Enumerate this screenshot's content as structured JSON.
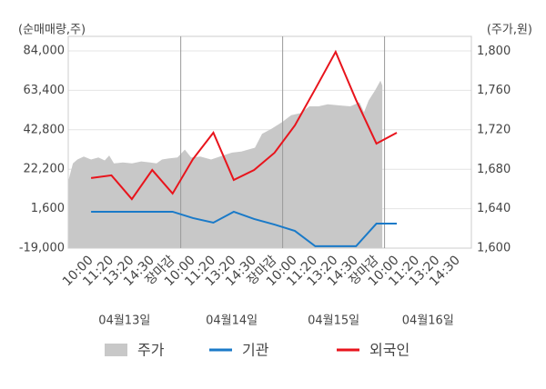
{
  "chart_data": {
    "type": "line",
    "y_title": "(순매매량,주)",
    "y2_title": "(주가,원)",
    "categories": [
      "10:00",
      "11:20",
      "13:20",
      "14:30",
      "장마감",
      "10:00",
      "11:20",
      "13:20",
      "14:30",
      "장마감",
      "10:00",
      "11:20",
      "13:20",
      "14:30",
      "장마감",
      "10:00",
      "11:20",
      "13:20",
      "14:30"
    ],
    "category_colors": [
      "#666",
      "#666",
      "#666",
      "#666",
      "#e8141c",
      "#666",
      "#666",
      "#666",
      "#666",
      "#e8141c",
      "#666",
      "#666",
      "#666",
      "#666",
      "#e8141c",
      "#222",
      "#666",
      "#666",
      "#666"
    ],
    "days": [
      "04월13일",
      "04월14일",
      "04월15일",
      "04월16일"
    ],
    "xlim": [
      -1.12,
      18.66
    ],
    "ylim": [
      -19000,
      91600
    ],
    "yticks": [
      {
        "value": 84000,
        "label": "84,000"
      },
      {
        "value": 63400,
        "label": "63,400"
      },
      {
        "value": 42800,
        "label": "42,800"
      },
      {
        "value": 22200,
        "label": "22,200"
      },
      {
        "value": 1600,
        "label": "1,600"
      },
      {
        "value": -19000,
        "label": "-19,000"
      }
    ],
    "y2lim": [
      1600,
      1815
    ],
    "y2ticks": [
      {
        "value": 1800,
        "label": "1,800"
      },
      {
        "value": 1760,
        "label": "1,760"
      },
      {
        "value": 1720,
        "label": "1,720"
      },
      {
        "value": 1680,
        "label": "1,680"
      },
      {
        "value": 1640,
        "label": "1,640"
      },
      {
        "value": 1600,
        "label": "1,600"
      }
    ],
    "grid": true,
    "series": [
      {
        "name": "주가",
        "color": "#c8c8c8",
        "axis": "y2",
        "kind": "area",
        "x": [
          -1.12,
          -0.89,
          -0.67,
          -0.36,
          0,
          0.36,
          0.67,
          0.89,
          1.12,
          1.56,
          2.01,
          2.46,
          2.9,
          3.21,
          3.48,
          3.79,
          4.24,
          4.6,
          4.91,
          5.36,
          5.89,
          6.47,
          6.92,
          7.37,
          8.04,
          8.39,
          8.84,
          9.38,
          9.82,
          10.27,
          10.71,
          11.16,
          11.61,
          12.14,
          12.72,
          13.17,
          13.39,
          13.62,
          13.93,
          14.2,
          14.29
        ],
        "values": [
          1668,
          1686,
          1690,
          1693,
          1690,
          1692,
          1689,
          1694,
          1686,
          1687,
          1686,
          1688,
          1687,
          1686,
          1690,
          1691,
          1692,
          1700,
          1692,
          1693,
          1690,
          1694,
          1697,
          1698,
          1702,
          1716,
          1721,
          1728,
          1735,
          1737,
          1744,
          1744,
          1746,
          1745,
          1744,
          1748,
          1738,
          1750,
          1760,
          1770,
          1765
        ]
      },
      {
        "name": "기관",
        "color": "#1a7ac8",
        "values": [
          0,
          0,
          0,
          0,
          0,
          -3300,
          -5700,
          0,
          -3800,
          -6700,
          -10000,
          -18000,
          -18000,
          -18000,
          -6200,
          -6200,
          null,
          null,
          null
        ]
      },
      {
        "name": "외국인",
        "color": "#e8141c",
        "values": [
          17600,
          19000,
          6600,
          21800,
          9500,
          27500,
          41300,
          16600,
          21800,
          30800,
          45100,
          64100,
          83500,
          58400,
          35600,
          41300,
          null,
          null,
          null
        ]
      }
    ]
  }
}
